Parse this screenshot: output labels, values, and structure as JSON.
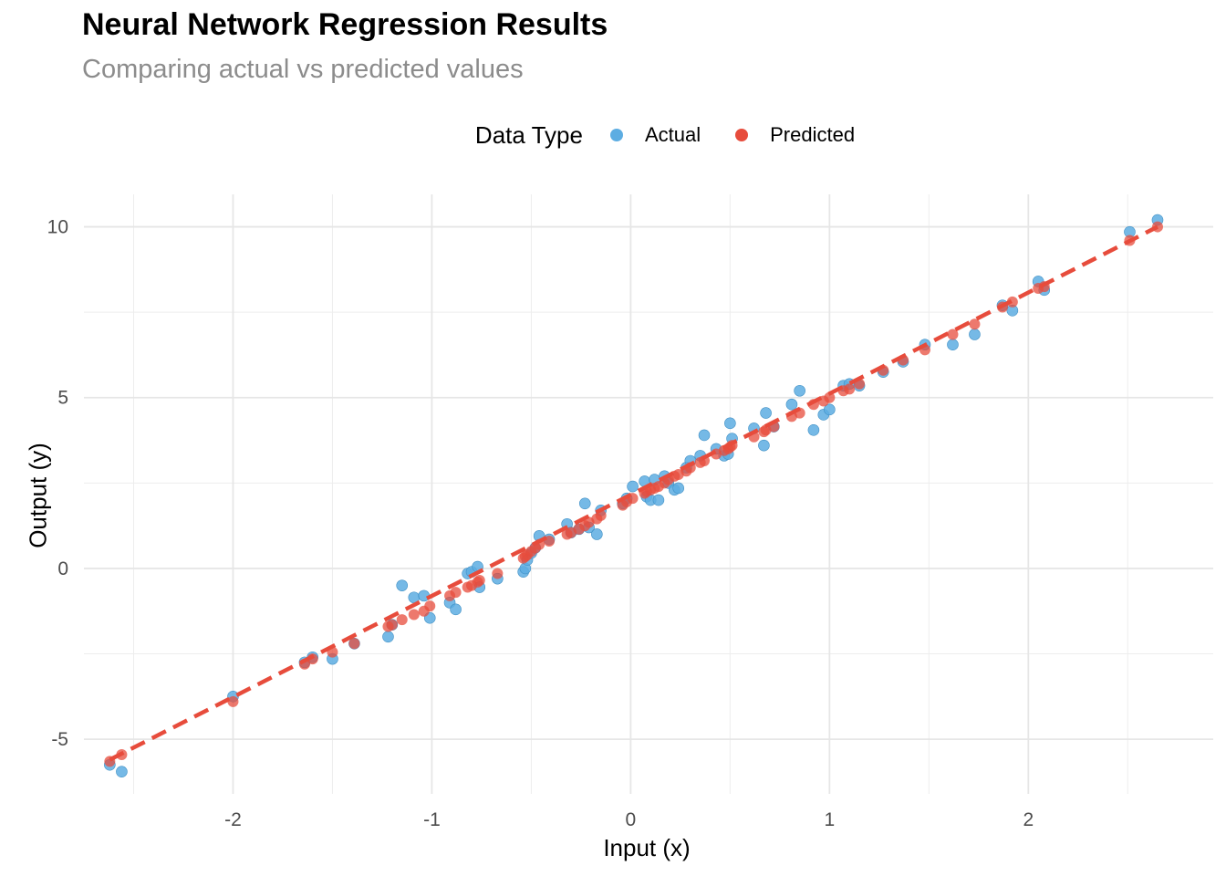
{
  "title": "Neural Network Regression Results",
  "subtitle": "Comparing actual vs predicted values",
  "legend": {
    "title": "Data Type",
    "items": [
      {
        "label": "Actual",
        "color": "#5dade2"
      },
      {
        "label": "Predicted",
        "color": "#e74c3c"
      }
    ]
  },
  "chart_data": {
    "type": "scatter",
    "title": "Neural Network Regression Results",
    "subtitle": "Comparing actual vs predicted values",
    "xlabel": "Input (x)",
    "ylabel": "Output (y)",
    "xlim": [
      -2.75,
      2.93
    ],
    "ylim": [
      -6.6,
      10.95
    ],
    "x_ticks": [
      -2,
      -1,
      0,
      1,
      2
    ],
    "y_ticks": [
      -5,
      0,
      5,
      10
    ],
    "grid": true,
    "legend_position": "top",
    "fitted_line": {
      "from": [
        -2.62,
        -5.6
      ],
      "to": [
        2.65,
        10.0
      ],
      "style": "dashed",
      "color": "#e74c3c"
    },
    "series": [
      {
        "name": "Actual",
        "color": "#5dade2",
        "points": [
          [
            -2.62,
            -5.75
          ],
          [
            -2.56,
            -5.95
          ],
          [
            -2.0,
            -3.75
          ],
          [
            -1.64,
            -2.75
          ],
          [
            -1.6,
            -2.6
          ],
          [
            -1.5,
            -2.65
          ],
          [
            -1.39,
            -2.2
          ],
          [
            -1.22,
            -2.0
          ],
          [
            -1.2,
            -1.65
          ],
          [
            -1.15,
            -0.5
          ],
          [
            -1.09,
            -0.85
          ],
          [
            -1.04,
            -0.8
          ],
          [
            -1.01,
            -1.45
          ],
          [
            -0.91,
            -1.0
          ],
          [
            -0.88,
            -1.2
          ],
          [
            -0.82,
            -0.15
          ],
          [
            -0.8,
            -0.1
          ],
          [
            -0.77,
            0.05
          ],
          [
            -0.76,
            -0.55
          ],
          [
            -0.67,
            -0.3
          ],
          [
            -0.54,
            -0.1
          ],
          [
            -0.53,
            0.0
          ],
          [
            -0.52,
            0.25
          ],
          [
            -0.5,
            0.45
          ],
          [
            -0.48,
            0.6
          ],
          [
            -0.46,
            0.95
          ],
          [
            -0.41,
            0.85
          ],
          [
            -0.32,
            1.3
          ],
          [
            -0.3,
            1.05
          ],
          [
            -0.26,
            1.15
          ],
          [
            -0.23,
            1.9
          ],
          [
            -0.21,
            1.2
          ],
          [
            -0.17,
            1.0
          ],
          [
            -0.15,
            1.7
          ],
          [
            -0.04,
            1.9
          ],
          [
            -0.02,
            2.05
          ],
          [
            0.01,
            2.4
          ],
          [
            0.07,
            2.55
          ],
          [
            0.08,
            2.1
          ],
          [
            0.1,
            2.0
          ],
          [
            0.12,
            2.6
          ],
          [
            0.14,
            2.0
          ],
          [
            0.17,
            2.7
          ],
          [
            0.19,
            2.5
          ],
          [
            0.22,
            2.3
          ],
          [
            0.24,
            2.35
          ],
          [
            0.28,
            2.95
          ],
          [
            0.3,
            3.15
          ],
          [
            0.35,
            3.3
          ],
          [
            0.37,
            3.9
          ],
          [
            0.43,
            3.5
          ],
          [
            0.47,
            3.3
          ],
          [
            0.49,
            3.35
          ],
          [
            0.5,
            4.25
          ],
          [
            0.51,
            3.8
          ],
          [
            0.62,
            4.1
          ],
          [
            0.67,
            3.6
          ],
          [
            0.68,
            4.55
          ],
          [
            0.72,
            4.15
          ],
          [
            0.81,
            4.8
          ],
          [
            0.85,
            5.2
          ],
          [
            0.92,
            4.05
          ],
          [
            0.97,
            4.5
          ],
          [
            1.0,
            4.65
          ],
          [
            1.07,
            5.35
          ],
          [
            1.1,
            5.4
          ],
          [
            1.15,
            5.35
          ],
          [
            1.27,
            5.75
          ],
          [
            1.37,
            6.05
          ],
          [
            1.48,
            6.55
          ],
          [
            1.62,
            6.55
          ],
          [
            1.73,
            6.85
          ],
          [
            1.87,
            7.7
          ],
          [
            1.92,
            7.55
          ],
          [
            2.05,
            8.4
          ],
          [
            2.08,
            8.15
          ],
          [
            2.51,
            9.85
          ],
          [
            2.65,
            10.2
          ]
        ]
      },
      {
        "name": "Predicted",
        "color": "#e74c3c",
        "points": [
          [
            -2.62,
            -5.65
          ],
          [
            -2.56,
            -5.45
          ],
          [
            -2.0,
            -3.9
          ],
          [
            -1.64,
            -2.8
          ],
          [
            -1.6,
            -2.65
          ],
          [
            -1.5,
            -2.45
          ],
          [
            -1.39,
            -2.2
          ],
          [
            -1.22,
            -1.7
          ],
          [
            -1.2,
            -1.65
          ],
          [
            -1.15,
            -1.5
          ],
          [
            -1.09,
            -1.35
          ],
          [
            -1.04,
            -1.25
          ],
          [
            -1.01,
            -1.1
          ],
          [
            -0.91,
            -0.8
          ],
          [
            -0.88,
            -0.7
          ],
          [
            -0.82,
            -0.55
          ],
          [
            -0.8,
            -0.5
          ],
          [
            -0.77,
            -0.4
          ],
          [
            -0.76,
            -0.35
          ],
          [
            -0.67,
            -0.15
          ],
          [
            -0.54,
            0.3
          ],
          [
            -0.53,
            0.35
          ],
          [
            -0.52,
            0.4
          ],
          [
            -0.5,
            0.5
          ],
          [
            -0.48,
            0.6
          ],
          [
            -0.46,
            0.7
          ],
          [
            -0.41,
            0.8
          ],
          [
            -0.32,
            1.0
          ],
          [
            -0.3,
            1.05
          ],
          [
            -0.26,
            1.15
          ],
          [
            -0.23,
            1.25
          ],
          [
            -0.21,
            1.35
          ],
          [
            -0.17,
            1.45
          ],
          [
            -0.15,
            1.55
          ],
          [
            -0.04,
            1.85
          ],
          [
            -0.02,
            1.95
          ],
          [
            0.01,
            2.05
          ],
          [
            0.07,
            2.2
          ],
          [
            0.08,
            2.25
          ],
          [
            0.1,
            2.3
          ],
          [
            0.12,
            2.35
          ],
          [
            0.14,
            2.4
          ],
          [
            0.17,
            2.5
          ],
          [
            0.19,
            2.6
          ],
          [
            0.22,
            2.7
          ],
          [
            0.24,
            2.75
          ],
          [
            0.28,
            2.85
          ],
          [
            0.3,
            2.95
          ],
          [
            0.35,
            3.1
          ],
          [
            0.37,
            3.15
          ],
          [
            0.43,
            3.35
          ],
          [
            0.47,
            3.45
          ],
          [
            0.49,
            3.5
          ],
          [
            0.5,
            3.55
          ],
          [
            0.51,
            3.6
          ],
          [
            0.62,
            3.85
          ],
          [
            0.67,
            4.0
          ],
          [
            0.68,
            4.05
          ],
          [
            0.72,
            4.15
          ],
          [
            0.81,
            4.45
          ],
          [
            0.85,
            4.55
          ],
          [
            0.92,
            4.8
          ],
          [
            0.97,
            4.9
          ],
          [
            1.0,
            5.0
          ],
          [
            1.07,
            5.2
          ],
          [
            1.1,
            5.25
          ],
          [
            1.15,
            5.4
          ],
          [
            1.27,
            5.8
          ],
          [
            1.37,
            6.1
          ],
          [
            1.48,
            6.4
          ],
          [
            1.62,
            6.85
          ],
          [
            1.73,
            7.15
          ],
          [
            1.87,
            7.65
          ],
          [
            1.92,
            7.8
          ],
          [
            2.05,
            8.2
          ],
          [
            2.08,
            8.25
          ],
          [
            2.51,
            9.6
          ],
          [
            2.65,
            10.0
          ]
        ]
      }
    ]
  }
}
